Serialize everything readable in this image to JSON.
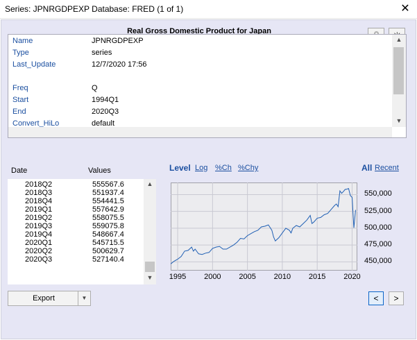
{
  "window": {
    "title": "Series: JPNRGDPEXP   Database: FRED (1 of 1)",
    "close_glyph": "✕"
  },
  "heading": "Real Gross Domestic Product for Japan",
  "meta": [
    {
      "key": "Name",
      "value": "JPNRGDPEXP"
    },
    {
      "key": "Type",
      "value": "series"
    },
    {
      "key": "Last_Update",
      "value": "12/7/2020 17:56"
    },
    {
      "key": "",
      "value": ""
    },
    {
      "key": "Freq",
      "value": "Q"
    },
    {
      "key": "Start",
      "value": "1994Q1"
    },
    {
      "key": "End",
      "value": "2020Q3"
    },
    {
      "key": "Convert_HiLo",
      "value": "default"
    }
  ],
  "grid": {
    "col_date": "Date",
    "col_values": "Values",
    "rows": [
      {
        "date": "2018Q2",
        "value": "555567.6"
      },
      {
        "date": "2018Q3",
        "value": "551937.4"
      },
      {
        "date": "2018Q4",
        "value": "554441.5"
      },
      {
        "date": "2019Q1",
        "value": "557642.9"
      },
      {
        "date": "2019Q2",
        "value": "558075.5"
      },
      {
        "date": "2019Q3",
        "value": "559075.8"
      },
      {
        "date": "2019Q4",
        "value": "548667.4"
      },
      {
        "date": "2020Q1",
        "value": "545715.5"
      },
      {
        "date": "2020Q2",
        "value": "500629.7"
      },
      {
        "date": "2020Q3",
        "value": "527140.4"
      }
    ]
  },
  "tabs": {
    "level": "Level",
    "log": "Log",
    "pch": "%Ch",
    "pchy": "%Chy",
    "all": "All",
    "recent": "Recent"
  },
  "buttons": {
    "export": "Export",
    "prev": "<",
    "next": ">"
  },
  "icons": {
    "lock": "lock-icon",
    "pin": "pin-icon"
  },
  "colors": {
    "line": "#1f5fb4",
    "link": "#1b4fa0",
    "background": "#e6e6f5"
  },
  "chart_data": {
    "type": "line",
    "xlim": [
      1994.0,
      2020.75
    ],
    "ylim": [
      437000,
      568000
    ],
    "x_ticks": [
      "1995",
      "2000",
      "2005",
      "2010",
      "2015",
      "2020"
    ],
    "y_ticks": [
      "450,000",
      "475,000",
      "500,000",
      "525,000",
      "550,000"
    ],
    "grid": true,
    "points": [
      [
        1994.0,
        447000
      ],
      [
        1994.5,
        451000
      ],
      [
        1995.0,
        454000
      ],
      [
        1995.5,
        458000
      ],
      [
        1996.0,
        466000
      ],
      [
        1996.5,
        467000
      ],
      [
        1997.0,
        472000
      ],
      [
        1997.25,
        466000
      ],
      [
        1997.5,
        469000
      ],
      [
        1998.0,
        462000
      ],
      [
        1998.5,
        461000
      ],
      [
        1999.0,
        463000
      ],
      [
        1999.5,
        464000
      ],
      [
        2000.0,
        470000
      ],
      [
        2000.5,
        472000
      ],
      [
        2001.0,
        473000
      ],
      [
        2001.5,
        469000
      ],
      [
        2002.0,
        469000
      ],
      [
        2002.5,
        472000
      ],
      [
        2003.0,
        475000
      ],
      [
        2003.5,
        479000
      ],
      [
        2004.0,
        485000
      ],
      [
        2004.5,
        484000
      ],
      [
        2005.0,
        489000
      ],
      [
        2005.5,
        492000
      ],
      [
        2006.0,
        495000
      ],
      [
        2006.5,
        497000
      ],
      [
        2007.0,
        502000
      ],
      [
        2007.5,
        503000
      ],
      [
        2008.0,
        505000
      ],
      [
        2008.5,
        497000
      ],
      [
        2008.75,
        487000
      ],
      [
        2009.0,
        481000
      ],
      [
        2009.5,
        486000
      ],
      [
        2010.0,
        493000
      ],
      [
        2010.5,
        500000
      ],
      [
        2011.0,
        497000
      ],
      [
        2011.25,
        493000
      ],
      [
        2011.5,
        500000
      ],
      [
        2012.0,
        504000
      ],
      [
        2012.5,
        502000
      ],
      [
        2013.0,
        507000
      ],
      [
        2013.5,
        512000
      ],
      [
        2014.0,
        519000
      ],
      [
        2014.25,
        507000
      ],
      [
        2014.5,
        509000
      ],
      [
        2015.0,
        515000
      ],
      [
        2015.5,
        516000
      ],
      [
        2016.0,
        520000
      ],
      [
        2016.5,
        522000
      ],
      [
        2017.0,
        528000
      ],
      [
        2017.5,
        534000
      ],
      [
        2017.75,
        536000
      ],
      [
        2018.0,
        532000
      ],
      [
        2018.25,
        555567.6
      ],
      [
        2018.5,
        551937.4
      ],
      [
        2018.75,
        554441.5
      ],
      [
        2019.0,
        557642.9
      ],
      [
        2019.25,
        558075.5
      ],
      [
        2019.5,
        559075.8
      ],
      [
        2019.75,
        548667.4
      ],
      [
        2020.0,
        545715.5
      ],
      [
        2020.25,
        500629.7
      ],
      [
        2020.5,
        527140.4
      ]
    ]
  }
}
